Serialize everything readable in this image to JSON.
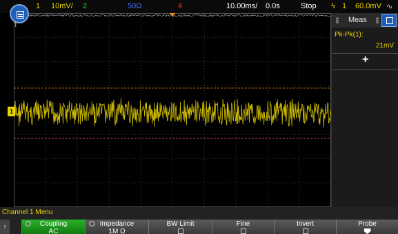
{
  "status_bar": {
    "ch1_num": "1",
    "ch1_scale": "10mV/",
    "ch2_num": "2",
    "ch3_impedance": "50Ω",
    "ch4_num": "4",
    "timebase": "10.00ms/",
    "delay": "0.0s",
    "run_state": "Stop",
    "trigger_source": "1",
    "trigger_level": "60.0mV"
  },
  "channel_marker": "1",
  "trigger_marker": "T",
  "measurements": {
    "title": "Meas",
    "label": "Pk-Pk(1):",
    "value": "21mV",
    "add_symbol": "+"
  },
  "channel_menu": {
    "title": "Channel 1 Menu",
    "back_symbol": "↑",
    "softkeys": [
      {
        "label": "Coupling",
        "value": "AC"
      },
      {
        "label": "Impedance",
        "value": "1M Ω"
      },
      {
        "label": "BW Limit"
      },
      {
        "label": "Fine"
      },
      {
        "label": "Invert"
      },
      {
        "label": "Probe"
      }
    ]
  },
  "colors": {
    "ch1": "#e8d400",
    "ch2": "#22cc22",
    "ch3": "#4d6bff",
    "ch4": "#e63333",
    "accent": "#1f5fb8",
    "trigger": "#ff8800"
  }
}
